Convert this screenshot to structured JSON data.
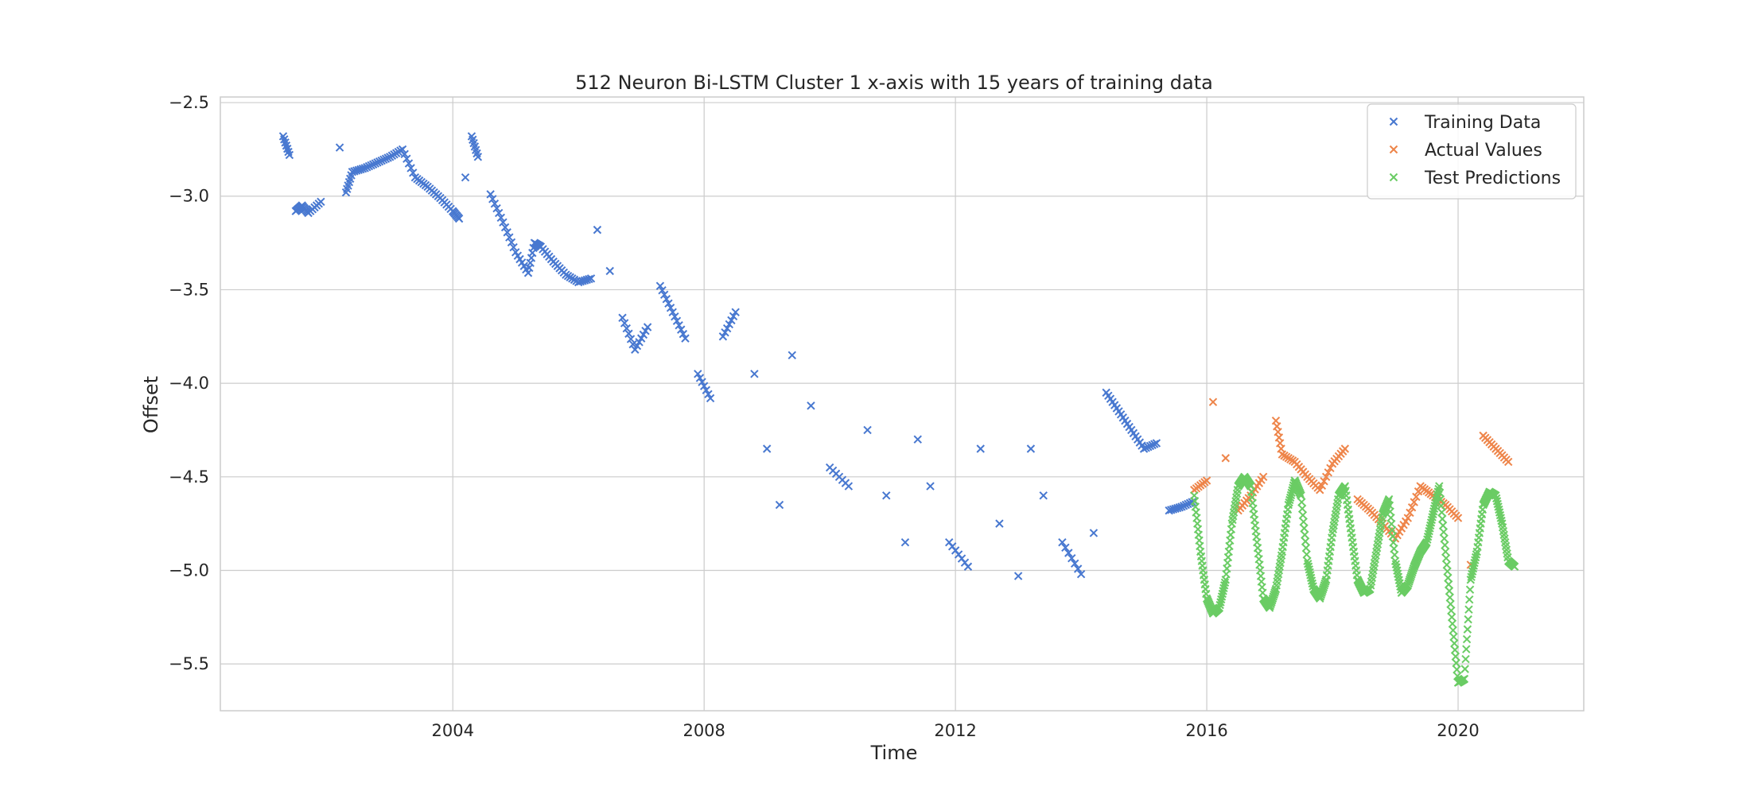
{
  "chart_data": {
    "type": "scatter",
    "title": "512 Neuron Bi-LSTM Cluster 1 x-axis with 15 years of training data",
    "xlabel": "Time",
    "ylabel": "Offset",
    "xlim": [
      2000.3,
      2022.0
    ],
    "ylim": [
      -5.75,
      -2.47
    ],
    "xticks": [
      2004,
      2008,
      2012,
      2016,
      2020
    ],
    "xtick_labels": [
      "2004",
      "2008",
      "2012",
      "2016",
      "2020"
    ],
    "yticks": [
      -2.5,
      -3.0,
      -3.5,
      -4.0,
      -4.5,
      -5.0,
      -5.5
    ],
    "ytick_labels": [
      "−2.5",
      "−3.0",
      "−3.5",
      "−4.0",
      "−4.5",
      "−5.0",
      "−5.5"
    ],
    "grid": true,
    "legend_position": "top-right",
    "marker": "x",
    "series": [
      {
        "name": "Training Data",
        "color": "#4878d0",
        "x": [
          2001.3,
          2001.4,
          2001.5,
          2001.6,
          2001.7,
          2001.9,
          2002.2,
          2002.3,
          2002.4,
          2002.6,
          2002.8,
          2003.0,
          2003.2,
          2003.4,
          2003.6,
          2003.8,
          2004.0,
          2004.1,
          2004.2,
          2004.3,
          2004.4,
          2004.6,
          2004.8,
          2005.0,
          2005.2,
          2005.3,
          2005.4,
          2005.6,
          2005.8,
          2006.0,
          2006.2,
          2006.3,
          2006.5,
          2006.7,
          2006.9,
          2007.1,
          2007.3,
          2007.5,
          2007.7,
          2007.9,
          2008.1,
          2008.3,
          2008.5,
          2008.8,
          2009.0,
          2009.2,
          2009.4,
          2009.7,
          2010.0,
          2010.3,
          2010.6,
          2010.9,
          2011.2,
          2011.4,
          2011.6,
          2011.9,
          2012.2,
          2012.4,
          2012.7,
          2013.0,
          2013.2,
          2013.4,
          2013.7,
          2014.0,
          2014.2,
          2014.4,
          2014.6,
          2014.8,
          2015.0,
          2015.2,
          2015.4,
          2015.6,
          2015.8
        ],
        "y": [
          -2.68,
          -2.78,
          -3.08,
          -3.05,
          -3.09,
          -3.03,
          -2.74,
          -2.98,
          -2.87,
          -2.85,
          -2.82,
          -2.79,
          -2.75,
          -2.9,
          -2.95,
          -3.01,
          -3.08,
          -3.12,
          -2.9,
          -2.68,
          -2.79,
          -2.99,
          -3.14,
          -3.3,
          -3.41,
          -3.25,
          -3.27,
          -3.35,
          -3.42,
          -3.46,
          -3.44,
          -3.18,
          -3.4,
          -3.65,
          -3.82,
          -3.7,
          -3.48,
          -3.62,
          -3.76,
          -3.95,
          -4.08,
          -3.75,
          -3.62,
          -3.95,
          -4.35,
          -4.65,
          -3.85,
          -4.12,
          -4.45,
          -4.55,
          -4.25,
          -4.6,
          -4.85,
          -4.3,
          -4.55,
          -4.85,
          -4.98,
          -4.35,
          -4.75,
          -5.03,
          -4.35,
          -4.6,
          -4.85,
          -5.02,
          -4.8,
          -4.05,
          -4.15,
          -4.25,
          -4.35,
          -4.32,
          -4.68,
          -4.66,
          -4.63
        ],
        "marks": "x"
      },
      {
        "name": "Actual Values",
        "color": "#ee854a",
        "x": [
          2015.8,
          2016.0,
          2016.1,
          2016.3,
          2016.5,
          2016.7,
          2016.9,
          2017.1,
          2017.2,
          2017.4,
          2017.6,
          2017.8,
          2018.0,
          2018.2,
          2018.4,
          2018.6,
          2018.8,
          2019.0,
          2019.2,
          2019.4,
          2019.6,
          2019.8,
          2020.0,
          2020.2,
          2020.4,
          2020.6,
          2020.8
        ],
        "y": [
          -4.57,
          -4.52,
          -4.1,
          -4.4,
          -4.68,
          -4.6,
          -4.5,
          -4.2,
          -4.38,
          -4.42,
          -4.5,
          -4.57,
          -4.43,
          -4.35,
          -4.62,
          -4.68,
          -4.75,
          -4.83,
          -4.72,
          -4.55,
          -4.6,
          -4.65,
          -4.72,
          -4.97,
          -4.28,
          -4.35,
          -4.42
        ],
        "marks": "x"
      },
      {
        "name": "Test Predictions",
        "color": "#6acc64",
        "x": [
          2015.8,
          2015.9,
          2016.0,
          2016.1,
          2016.2,
          2016.3,
          2016.4,
          2016.5,
          2016.6,
          2016.7,
          2016.8,
          2016.9,
          2017.0,
          2017.1,
          2017.2,
          2017.3,
          2017.4,
          2017.5,
          2017.6,
          2017.7,
          2017.8,
          2017.9,
          2018.0,
          2018.1,
          2018.2,
          2018.3,
          2018.4,
          2018.5,
          2018.6,
          2018.7,
          2018.8,
          2018.9,
          2019.0,
          2019.1,
          2019.2,
          2019.3,
          2019.4,
          2019.5,
          2019.6,
          2019.7,
          2019.8,
          2019.9,
          2020.0,
          2020.1,
          2020.2,
          2020.3,
          2020.4,
          2020.5,
          2020.6,
          2020.7,
          2020.8,
          2020.9
        ],
        "y": [
          -4.6,
          -4.9,
          -5.15,
          -5.23,
          -5.2,
          -5.05,
          -4.75,
          -4.55,
          -4.5,
          -4.55,
          -4.85,
          -5.15,
          -5.2,
          -5.1,
          -4.9,
          -4.65,
          -4.52,
          -4.6,
          -4.95,
          -5.1,
          -5.15,
          -5.05,
          -4.8,
          -4.6,
          -4.55,
          -4.8,
          -5.05,
          -5.12,
          -5.1,
          -4.9,
          -4.7,
          -4.62,
          -4.95,
          -5.12,
          -5.08,
          -4.98,
          -4.9,
          -4.85,
          -4.7,
          -4.55,
          -4.9,
          -5.25,
          -5.6,
          -5.58,
          -5.05,
          -4.9,
          -4.65,
          -4.58,
          -4.6,
          -4.75,
          -4.95,
          -4.98
        ],
        "marks": "x"
      }
    ]
  }
}
